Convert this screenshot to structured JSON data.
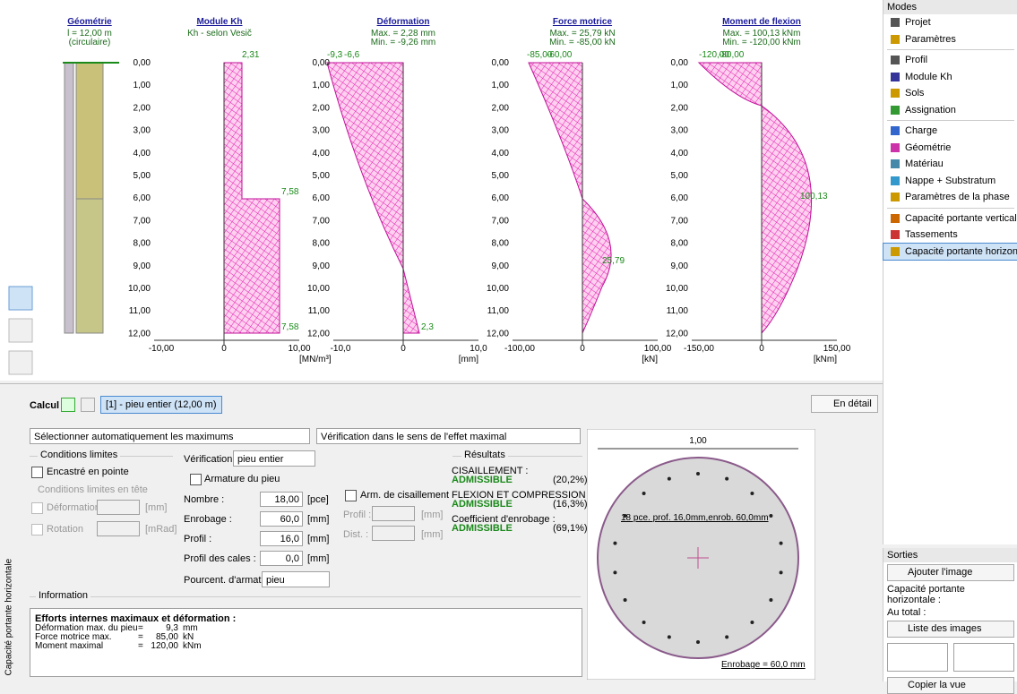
{
  "plots": [
    {
      "title": "Géométrie",
      "lines": [
        "l = 12,00 m",
        "(circulaire)"
      ]
    },
    {
      "title": "Module Kh",
      "lines": [
        "Kh - selon Vesič"
      ],
      "x_labels": [
        "-10,00",
        "0",
        "10,00"
      ],
      "unit": "[MN/m³]",
      "annotations": [
        "2,31",
        "7,58",
        "7,58"
      ]
    },
    {
      "title": "Déformation",
      "lines": [
        "Max. = 2,28 mm",
        "Min. = -9,26 mm"
      ],
      "x_labels": [
        "-10,0",
        "0",
        "10,0"
      ],
      "unit": "[mm]",
      "annotations": [
        "-9,3",
        "-6,6",
        "2,3"
      ]
    },
    {
      "title": "Force motrice",
      "lines": [
        "Max. = 25,79 kN",
        "Min. = -85,00 kN"
      ],
      "x_labels": [
        "-100,00",
        "0",
        "100,00"
      ],
      "unit": "[kN]",
      "annotations": [
        "-85,00",
        "-60,00",
        "25,79"
      ]
    },
    {
      "title": "Moment de flexion",
      "lines": [
        "Max. = 100,13 kNm",
        "Min. = -120,00 kNm"
      ],
      "x_labels": [
        "-150,00",
        "0",
        "150,00"
      ],
      "unit": "[kNm]",
      "annotations": [
        "-120,00",
        "-80,00",
        "100,13"
      ]
    }
  ],
  "depth_ticks": [
    "0,00",
    "1,00",
    "2,00",
    "3,00",
    "4,00",
    "5,00",
    "6,00",
    "7,00",
    "8,00",
    "9,00",
    "10,00",
    "11,00",
    "12,00"
  ],
  "modes": {
    "title": "Modes",
    "items": [
      "Projet",
      "Paramètres",
      "Profil",
      "Module Kh",
      "Sols",
      "Assignation",
      "Charge",
      "Géométrie",
      "Matériau",
      "Nappe + Substratum",
      "Paramètres de la phase",
      "Capacité portante verticale",
      "Tassements",
      "Capacité portante horizontale"
    ]
  },
  "sorties": {
    "title": "Sorties",
    "add_image": "Ajouter l'image",
    "line1": "Capacité portante horizontale :",
    "line2": "Au total :",
    "list_images": "Liste des images",
    "copy_view": "Copier la vue"
  },
  "bottom": {
    "side_label": "Capacité portante horizontale",
    "calcul_label": "Calcul :",
    "calcul_item": "[1] - pieu entier (12,00 m)",
    "detail": "En détail",
    "select1": "Sélectionner automatiquement les maximums",
    "select2": "Vérification dans le sens de l'effet maximal",
    "conditions": "Conditions limites",
    "encastre": "Encastré en pointe",
    "conditions_tete": "Conditions limites en tête",
    "deformation": "Déformation",
    "unit_mm": "[mm]",
    "rotation": "Rotation",
    "unit_mrad": "[mRad]",
    "verification_label": "Vérification :",
    "verification_value": "pieu entier",
    "armature": "Armature du pieu",
    "fields": [
      [
        "Nombre :",
        "18,00",
        "[pce]"
      ],
      [
        "Enrobage :",
        "60,0",
        "[mm]"
      ],
      [
        "Profil :",
        "16,0",
        "[mm]"
      ],
      [
        "Profil des cales :",
        "0,0",
        "[mm]"
      ]
    ],
    "pourcent_label": "Pourcent. d'armat. :",
    "pourcent_value": "pieu",
    "cisaillement": "Arm. de cisaillement",
    "profil": "Profil :",
    "dist": "Dist. :",
    "results_title": "Résultats",
    "results": [
      [
        "CISAILLEMENT :",
        "ADMISSIBLE",
        "(20,2%)"
      ],
      [
        "FLEXION ET COMPRESSION :",
        "ADMISSIBLE",
        "(16,3%)"
      ],
      [
        "Coefficient d'enrobage :",
        "ADMISSIBLE",
        "(69,1%)"
      ]
    ],
    "info_title": "Information",
    "info_heading": "Efforts internes maximaux et déformation :",
    "info_rows": [
      [
        "Déformation max. du pieu",
        "=",
        "9,3",
        "mm"
      ],
      [
        "Force motrice max.",
        "=",
        "85,00",
        "kN"
      ],
      [
        "Moment maximal",
        "=",
        "120,00",
        "kNm"
      ]
    ],
    "section_dim": "1,00",
    "section_label": "18 pce. prof. 16,0mm,enrob. 60,0mm",
    "section_cover": "Enrobage = 60,0 mm"
  }
}
